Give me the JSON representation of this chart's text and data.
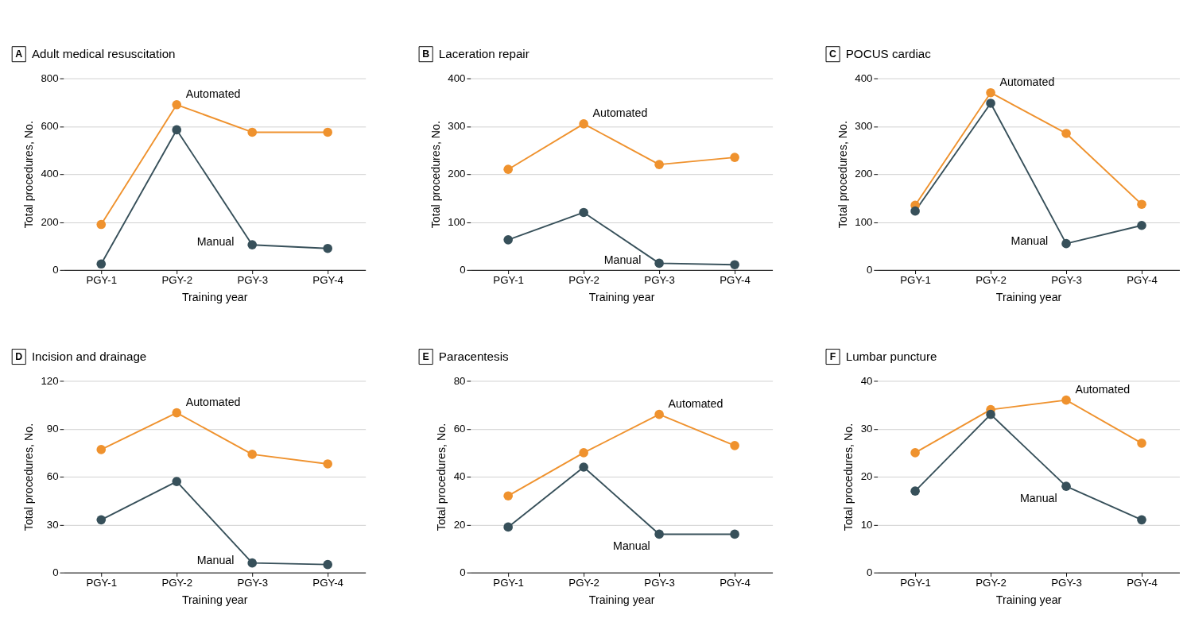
{
  "chart_data": [
    {
      "type": "line",
      "title": "Adult medical resuscitation",
      "annotations": [
        "A"
      ],
      "xlabel": "Training year",
      "ylabel": "Total procedures, No.",
      "categories": [
        "PGY-1",
        "PGY-2",
        "PGY-3",
        "PGY-4"
      ],
      "ylim": [
        0,
        800
      ],
      "yticks": [
        0,
        200,
        400,
        600,
        800
      ],
      "grid": "y",
      "marker": "circle",
      "legend": false,
      "series": [
        {
          "name": "Automated",
          "color": "#ef922e",
          "values": [
            190,
            690,
            575,
            575
          ]
        },
        {
          "name": "Manual",
          "color": "#37505a",
          "values": [
            25,
            585,
            105,
            90
          ]
        }
      ]
    },
    {
      "type": "line",
      "title": "Laceration repair",
      "annotations": [
        "B"
      ],
      "xlabel": "Training year",
      "ylabel": "Total procedures, No.",
      "categories": [
        "PGY-1",
        "PGY-2",
        "PGY-3",
        "PGY-4"
      ],
      "ylim": [
        0,
        400
      ],
      "yticks": [
        0,
        100,
        200,
        300,
        400
      ],
      "grid": "y",
      "marker": "circle",
      "legend": false,
      "series": [
        {
          "name": "Automated",
          "color": "#ef922e",
          "values": [
            210,
            305,
            220,
            235
          ]
        },
        {
          "name": "Manual",
          "color": "#37505a",
          "values": [
            63,
            120,
            14,
            11
          ]
        }
      ]
    },
    {
      "type": "line",
      "title": "POCUS cardiac",
      "annotations": [
        "C"
      ],
      "xlabel": "Training year",
      "ylabel": "Total procedures, No.",
      "categories": [
        "PGY-1",
        "PGY-2",
        "PGY-3",
        "PGY-4"
      ],
      "ylim": [
        0,
        400
      ],
      "yticks": [
        0,
        100,
        200,
        300,
        400
      ],
      "grid": "y",
      "marker": "circle",
      "legend": false,
      "series": [
        {
          "name": "Automated",
          "color": "#ef922e",
          "values": [
            135,
            370,
            285,
            137
          ]
        },
        {
          "name": "Manual",
          "color": "#37505a",
          "values": [
            123,
            348,
            55,
            93
          ]
        }
      ]
    },
    {
      "type": "line",
      "title": "Incision and drainage",
      "annotations": [
        "D"
      ],
      "xlabel": "Training year",
      "ylabel": "Total procedures, No.",
      "categories": [
        "PGY-1",
        "PGY-2",
        "PGY-3",
        "PGY-4"
      ],
      "ylim": [
        0,
        120
      ],
      "yticks": [
        0,
        30,
        60,
        90,
        120
      ],
      "grid": "y",
      "marker": "circle",
      "legend": false,
      "series": [
        {
          "name": "Automated",
          "color": "#ef922e",
          "values": [
            77,
            100,
            74,
            68
          ]
        },
        {
          "name": "Manual",
          "color": "#37505a",
          "values": [
            33,
            57,
            6,
            5
          ]
        }
      ]
    },
    {
      "type": "line",
      "title": "Paracentesis",
      "annotations": [
        "E"
      ],
      "xlabel": "Training year",
      "ylabel": "Total procedures, No.",
      "categories": [
        "PGY-1",
        "PGY-2",
        "PGY-3",
        "PGY-4"
      ],
      "ylim": [
        0,
        80
      ],
      "yticks": [
        0,
        20,
        40,
        60,
        80
      ],
      "grid": "y",
      "marker": "circle",
      "legend": false,
      "series": [
        {
          "name": "Automated",
          "color": "#ef922e",
          "values": [
            32,
            50,
            66,
            53
          ]
        },
        {
          "name": "Manual",
          "color": "#37505a",
          "values": [
            19,
            44,
            16,
            16
          ]
        }
      ]
    },
    {
      "type": "line",
      "title": "Lumbar puncture",
      "annotations": [
        "F"
      ],
      "xlabel": "Training year",
      "ylabel": "Total procedures, No.",
      "categories": [
        "PGY-1",
        "PGY-2",
        "PGY-3",
        "PGY-4"
      ],
      "ylim": [
        0,
        40
      ],
      "yticks": [
        0,
        10,
        20,
        30,
        40
      ],
      "grid": "y",
      "marker": "circle",
      "legend": false,
      "series": [
        {
          "name": "Automated",
          "color": "#ef922e",
          "values": [
            25,
            34,
            36,
            27
          ]
        },
        {
          "name": "Manual",
          "color": "#37505a",
          "values": [
            17,
            33,
            18,
            11
          ]
        }
      ]
    }
  ]
}
